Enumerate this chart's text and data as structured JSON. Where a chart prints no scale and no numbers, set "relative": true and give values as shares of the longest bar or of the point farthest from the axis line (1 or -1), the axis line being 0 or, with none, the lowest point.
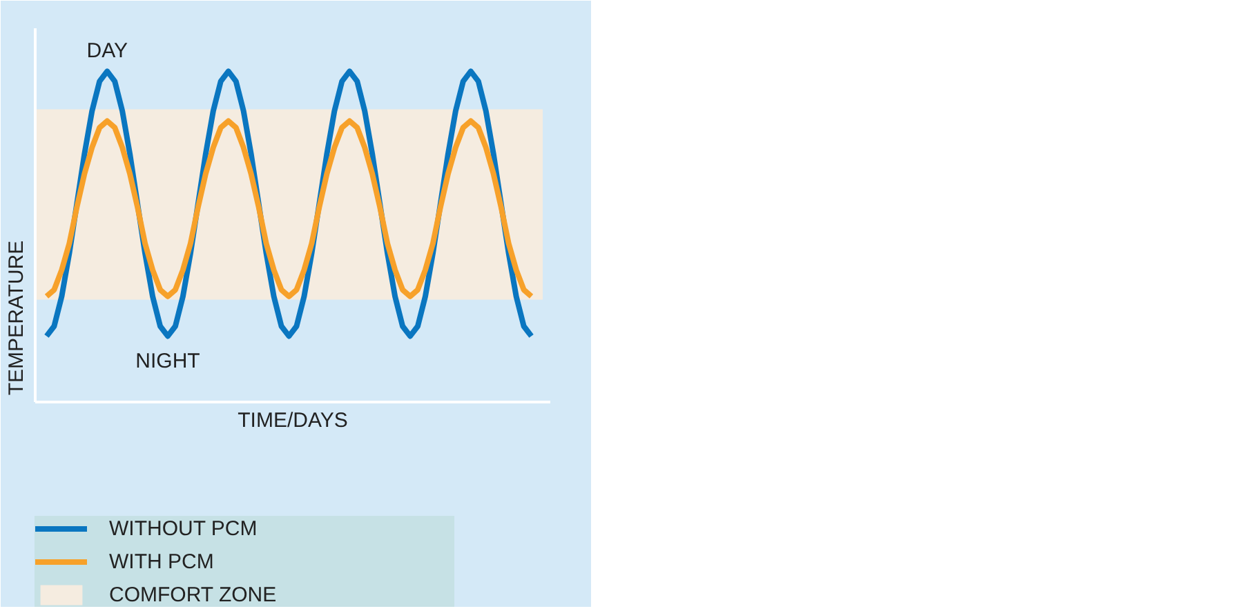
{
  "chart_data": {
    "type": "line",
    "relative": true,
    "xlabel": "TIME/DAYS",
    "ylabel": "TEMPERATURE",
    "annotations": [
      "DAY",
      "NIGHT"
    ],
    "categories": [
      null,
      null,
      null,
      null,
      null,
      null,
      null,
      null,
      null,
      null,
      null,
      null,
      null,
      null,
      null,
      null,
      null,
      null,
      null,
      null,
      null,
      null,
      null,
      null,
      null,
      null,
      null,
      null,
      null,
      null,
      null,
      null,
      null,
      null,
      null,
      null,
      null,
      null,
      null,
      null,
      null,
      null,
      null,
      null,
      null,
      null,
      null,
      null,
      null,
      null,
      null,
      null,
      null,
      null,
      null,
      null,
      null,
      null,
      null,
      null,
      null,
      null,
      null,
      null,
      null
    ],
    "series": [
      {
        "name": "WITHOUT PCM",
        "color": "#0a76c0",
        "values": [
          0.2,
          0.23,
          0.32,
          0.45,
          0.6,
          0.75,
          0.88,
          0.97,
          1.0,
          0.97,
          0.88,
          0.75,
          0.6,
          0.45,
          0.32,
          0.23,
          0.2,
          0.23,
          0.32,
          0.45,
          0.6,
          0.75,
          0.88,
          0.97,
          1.0,
          0.97,
          0.88,
          0.75,
          0.6,
          0.45,
          0.32,
          0.23,
          0.2,
          0.23,
          0.32,
          0.45,
          0.6,
          0.75,
          0.88,
          0.97,
          1.0,
          0.97,
          0.88,
          0.75,
          0.6,
          0.45,
          0.32,
          0.23,
          0.2,
          0.23,
          0.32,
          0.45,
          0.6,
          0.75,
          0.88,
          0.97,
          1.0,
          0.97,
          0.88,
          0.75,
          0.6,
          0.45,
          0.32,
          0.23,
          0.2
        ]
      },
      {
        "name": "WITH PCM",
        "color": "#f7a12a",
        "values": [
          0.32,
          0.34,
          0.4,
          0.48,
          0.59,
          0.69,
          0.77,
          0.83,
          0.85,
          0.83,
          0.77,
          0.69,
          0.59,
          0.48,
          0.4,
          0.34,
          0.32,
          0.34,
          0.4,
          0.48,
          0.59,
          0.69,
          0.77,
          0.83,
          0.85,
          0.83,
          0.77,
          0.69,
          0.59,
          0.48,
          0.4,
          0.34,
          0.32,
          0.34,
          0.4,
          0.48,
          0.59,
          0.69,
          0.77,
          0.83,
          0.85,
          0.83,
          0.77,
          0.69,
          0.59,
          0.48,
          0.4,
          0.34,
          0.32,
          0.34,
          0.4,
          0.48,
          0.59,
          0.69,
          0.77,
          0.83,
          0.85,
          0.83,
          0.77,
          0.69,
          0.59,
          0.48,
          0.4,
          0.34,
          0.32
        ]
      }
    ],
    "bands": [
      {
        "axis": "y",
        "from": 0.31,
        "to": 0.885,
        "label": "COMFORT ZONE",
        "color": "#f5ece0"
      }
    ],
    "legend": "bottom"
  }
}
